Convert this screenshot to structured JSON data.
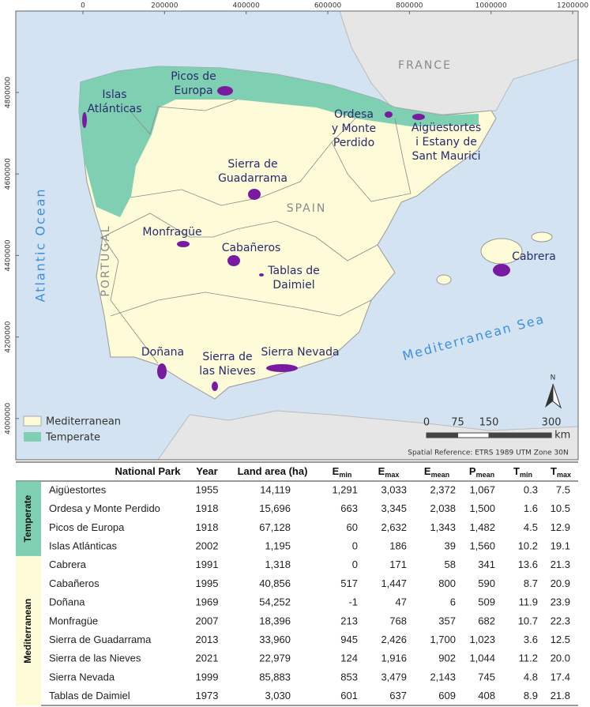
{
  "map": {
    "x_ticks": [
      0,
      200000,
      400000,
      600000,
      800000,
      1000000,
      1200000
    ],
    "y_ticks": [
      4000000,
      4200000,
      4400000,
      4600000,
      4800000
    ],
    "places": [
      "FRANCE",
      "SPAIN",
      "PORTUGAL"
    ],
    "seas": [
      "Atlantic Ocean",
      "Mediterranean Sea"
    ],
    "parks": [
      {
        "label": [
          "Picos de",
          "Europa"
        ]
      },
      {
        "label": [
          "Islas",
          "Atlánticas"
        ]
      },
      {
        "label": [
          "Ordesa",
          "y Monte",
          "Perdido"
        ]
      },
      {
        "label": [
          "Aigüestortes",
          "i Estany de",
          "Sant Maurici"
        ]
      },
      {
        "label": [
          "Sierra de",
          "Guadarrama"
        ]
      },
      {
        "label": [
          "Monfragüe"
        ]
      },
      {
        "label": [
          "Cabañeros"
        ]
      },
      {
        "label": [
          "Tablas de",
          "Daimiel"
        ]
      },
      {
        "label": [
          "Cabrera"
        ]
      },
      {
        "label": [
          "Doñana"
        ]
      },
      {
        "label": [
          "Sierra de",
          "las Nieves"
        ]
      },
      {
        "label": [
          "Sierra Nevada"
        ]
      }
    ],
    "legend": [
      "Mediterranean",
      "Temperate"
    ],
    "scale": {
      "ticks": [
        0,
        75,
        150,
        300
      ],
      "unit": "km"
    },
    "north": "N",
    "spatial_reference": "Spatial Reference: ETRS 1989 UTM Zone 30N"
  },
  "table": {
    "columns": [
      {
        "base": "National Park"
      },
      {
        "base": "Year"
      },
      {
        "base": "Land area (ha)"
      },
      {
        "base": "E",
        "sub": "min"
      },
      {
        "base": "E",
        "sub": "max"
      },
      {
        "base": "E",
        "sub": "mean"
      },
      {
        "base": "P",
        "sub": "mean"
      },
      {
        "base": "T",
        "sub": "min"
      },
      {
        "base": "T",
        "sub": "max"
      }
    ],
    "groups": [
      {
        "label": "Temperate",
        "rows": [
          [
            "Aigüestortes",
            "1955",
            "14,119",
            "1,291",
            "3,033",
            "2,372",
            "1,067",
            "0.3",
            "7.5"
          ],
          [
            "Ordesa y Monte Perdido",
            "1918",
            "15,696",
            "663",
            "3,345",
            "2,038",
            "1,500",
            "1.6",
            "10.5"
          ],
          [
            "Picos de Europa",
            "1918",
            "67,128",
            "60",
            "2,632",
            "1,343",
            "1,482",
            "4.5",
            "12.9"
          ],
          [
            "Islas Atlánticas",
            "2002",
            "1,195",
            "0",
            "186",
            "39",
            "1,560",
            "10.2",
            "19.1"
          ]
        ]
      },
      {
        "label": "Mediterranean",
        "rows": [
          [
            "Cabrera",
            "1991",
            "1,318",
            "0",
            "171",
            "58",
            "341",
            "13.6",
            "21.3"
          ],
          [
            "Cabañeros",
            "1995",
            "40,856",
            "517",
            "1,447",
            "800",
            "590",
            "8.7",
            "20.9"
          ],
          [
            "Doñana",
            "1969",
            "54,252",
            "-1",
            "47",
            "6",
            "509",
            "11.9",
            "23.9"
          ],
          [
            "Monfragüe",
            "2007",
            "18,396",
            "213",
            "768",
            "357",
            "682",
            "10.7",
            "22.3"
          ],
          [
            "Sierra de Guadarrama",
            "2013",
            "33,960",
            "945",
            "2,426",
            "1,700",
            "1,023",
            "3.6",
            "12.5"
          ],
          [
            "Sierra de las Nieves",
            "2021",
            "22,979",
            "124",
            "1,916",
            "902",
            "1,044",
            "11.2",
            "20.0"
          ],
          [
            "Sierra Nevada",
            "1999",
            "85,883",
            "853",
            "3,479",
            "2,143",
            "745",
            "4.8",
            "17.4"
          ],
          [
            "Tablas de Daimiel",
            "1973",
            "3,030",
            "601",
            "637",
            "609",
            "408",
            "8.9",
            "21.8"
          ]
        ]
      }
    ]
  }
}
